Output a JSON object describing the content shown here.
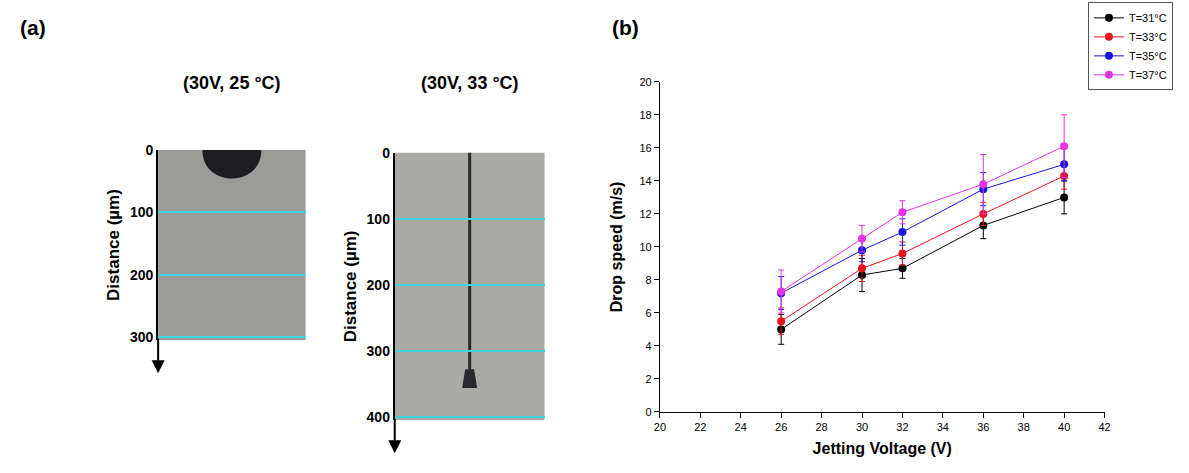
{
  "chart_data": [
    {
      "type": "image",
      "annotations": [
        "(a)"
      ],
      "title": "(30V, 25 °C)",
      "ylabel": "Distance (µm)",
      "ylim": [
        0,
        305
      ],
      "yticks": [
        0,
        100,
        200,
        300
      ],
      "grid": true
    },
    {
      "type": "image",
      "title": "(30V, 33 °C)",
      "ylabel": "Distance (µm)",
      "ylim": [
        0,
        405
      ],
      "yticks": [
        0,
        100,
        200,
        300,
        400
      ],
      "grid": true
    },
    {
      "type": "line",
      "annotations": [
        "(b)"
      ],
      "xlabel": "Jetting Voltage (V)",
      "ylabel": "Drop speed (m/s)",
      "x": [
        26,
        30,
        32,
        36,
        40
      ],
      "series": [
        {
          "name": "T=31°C",
          "color": "#000000",
          "marker": "circle",
          "line_style": "solid",
          "values": [
            5.0,
            8.3,
            8.7,
            11.3,
            13.0
          ],
          "errors": [
            0.9,
            1.0,
            0.6,
            0.8,
            1.0
          ]
        },
        {
          "name": "T=33°C",
          "color": "#e8141c",
          "marker": "circle",
          "line_style": "solid",
          "values": [
            5.5,
            8.7,
            9.6,
            12.0,
            14.3
          ],
          "errors": [
            0.8,
            0.8,
            0.7,
            0.7,
            0.8
          ]
        },
        {
          "name": "T=35°C",
          "color": "#1616e0",
          "marker": "circle",
          "line_style": "solid",
          "values": [
            7.2,
            9.8,
            10.9,
            13.5,
            15.0
          ],
          "errors": [
            1.0,
            0.7,
            0.8,
            1.0,
            1.0
          ]
        },
        {
          "name": "T=37°C",
          "color": "#e632e6",
          "marker": "circle",
          "line_style": "solid",
          "values": [
            7.3,
            10.5,
            12.1,
            13.8,
            16.1
          ],
          "errors": [
            1.3,
            0.8,
            0.7,
            1.8,
            1.9
          ]
        }
      ],
      "xlim": [
        20,
        42
      ],
      "xticks": [
        20,
        22,
        24,
        26,
        28,
        30,
        32,
        34,
        36,
        38,
        40,
        42
      ],
      "ylim": [
        0,
        20
      ],
      "yticks": [
        0,
        2,
        4,
        6,
        8,
        10,
        12,
        14,
        16,
        18,
        20
      ],
      "grid": false,
      "legend": "top right"
    }
  ]
}
